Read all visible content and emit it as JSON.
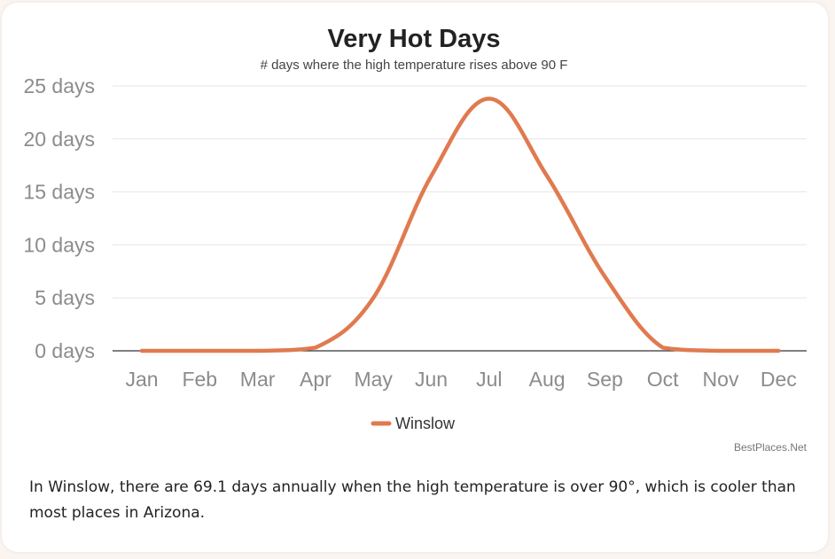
{
  "chart_data": {
    "type": "line",
    "title": "Very Hot Days",
    "subtitle": "# days where the high temperature rises above 90 F",
    "categories": [
      "Jan",
      "Feb",
      "Mar",
      "Apr",
      "May",
      "Jun",
      "Jul",
      "Aug",
      "Sep",
      "Oct",
      "Nov",
      "Dec"
    ],
    "y_tick_labels": [
      "0 days",
      "5 days",
      "10 days",
      "15 days",
      "20 days",
      "25 days"
    ],
    "y_ticks": [
      0,
      5,
      10,
      15,
      20,
      25
    ],
    "ylim": [
      0,
      25
    ],
    "grid": true,
    "legend_position": "bottom-center",
    "series": [
      {
        "name": "Winslow",
        "color": "#e07a4f",
        "values": [
          0,
          0,
          0,
          0.3,
          5,
          16.5,
          23.8,
          16.5,
          7,
          0.3,
          0,
          0
        ]
      }
    ]
  },
  "credit": "BestPlaces.Net",
  "description": "In Winslow, there are 69.1 days annually when the high temperature is over 90°, which is cooler than most places in Arizona."
}
